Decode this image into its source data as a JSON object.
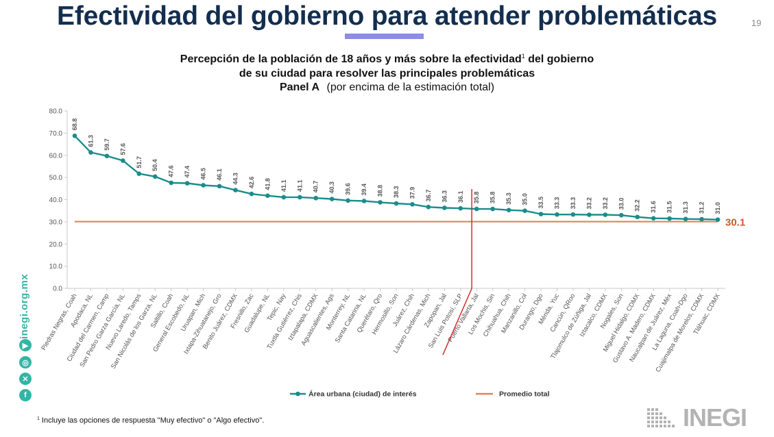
{
  "header": {
    "title": "Efectividad del gobierno para atender problemáticas",
    "page_number": "19"
  },
  "subtitle": {
    "line1_a": "Percepción de la población de 18 años y más sobre la efectividad",
    "line1_sup": "1",
    "line1_b": " del gobierno",
    "line2": "de su ciudad para resolver las principales problemáticas",
    "panel_label": "Panel A",
    "panel_note": "(por encima de la estimación total)"
  },
  "chart_data": {
    "type": "line",
    "ylim": [
      0,
      80
    ],
    "yticks": [
      "0.0",
      "10.0",
      "20.0",
      "30.0",
      "40.0",
      "50.0",
      "60.0",
      "70.0",
      "80.0"
    ],
    "categories": [
      "Piedras Negras, Coah",
      "Apodaca, NL",
      "Ciudad del Carmen, Camp",
      "San Pedro Garza García, NL",
      "Nuevo Laredo, Tamps",
      "San Nicolás de los Garza, NL",
      "Saltillo, Coah",
      "General Escobedo, NL",
      "Uruapan, Mich",
      "Ixtapa-Zihuatanejo, Gro",
      "Benito Juárez, CDMX",
      "Fresnillo, Zac",
      "Guadalupe, NL",
      "Tepic, Nay",
      "Tuxtla Gutiérrez, Chis",
      "Iztapalapa, CDMX",
      "Aguascalientes, Ags",
      "Monterrey, NL",
      "Santa Catarina, NL",
      "Querétaro, Qro",
      "Hermosillo, Son",
      "Juárez, Chih",
      "Lázaro Cárdenas, Mich",
      "Zapopan, Jal",
      "San Luis Potosí, SLP",
      "Puerto Vallarta, Jal",
      "Los Mochis, Sin",
      "Chihuahua, Chih",
      "Manzanillo, Col",
      "Durango, Dgo",
      "Mérida, Yuc",
      "Cancún, QRoo",
      "Tlajomulco de Zúñiga, Jal",
      "Iztacalco, CDMX",
      "Nogales, Son",
      "Miguel Hidalgo, CDMX",
      "Gustavo A. Madero, CDMX",
      "Naucalpan de Juárez, Méx",
      "La Laguna, Coah-Dgo",
      "Cuajimalpa de Morelos, CDMX",
      "Tláhuac, CDMX"
    ],
    "series": [
      {
        "name": "Área urbana (ciudad) de interés",
        "color": "#1a8c8c",
        "values": [
          68.8,
          61.3,
          59.7,
          57.6,
          51.7,
          50.4,
          47.6,
          47.4,
          46.5,
          46.1,
          44.3,
          42.6,
          41.8,
          41.1,
          41.1,
          40.7,
          40.3,
          39.6,
          39.4,
          38.8,
          38.3,
          37.9,
          36.7,
          36.3,
          36.1,
          35.8,
          35.8,
          35.3,
          35.0,
          33.5,
          33.3,
          33.3,
          33.2,
          33.2,
          33.0,
          32.2,
          31.6,
          31.5,
          31.3,
          31.2,
          31.0
        ],
        "value_labels": [
          "68.8",
          "61.3",
          "59.7",
          "57.6",
          "51.7",
          "50.4",
          "47.6",
          "47.4",
          "46.5",
          "46.1",
          "44.3",
          "42.6",
          "41.8",
          "41.1",
          "41.1",
          "40.7",
          "40.3",
          "39.6",
          "39.4",
          "38.8",
          "38.3",
          "37.9",
          "36.7",
          "36.3",
          "36.1",
          "35.8",
          "35.8",
          "35.3",
          "35.0",
          "33.5",
          "33.3",
          "33.3",
          "33.2",
          "33.2",
          "33.0",
          "32.2",
          "31.6",
          "31.5",
          "31.3",
          "31.2",
          "31.0"
        ]
      },
      {
        "name": "Promedio total",
        "color": "#e0825a",
        "value": 30.1,
        "value_label": "30.1"
      }
    ],
    "legend_position": "bottom",
    "grid": false,
    "colors": {
      "value_label": "#555555",
      "axis_text": "#555555",
      "total_label": "#d4582a",
      "marker_line": "#d42a2a"
    }
  },
  "footnote": {
    "sup": "1",
    "text": "Incluye las opciones de respuesta \"Muy efectivo\" o \"Algo efectivo\"."
  },
  "sidebar": {
    "site": "inegi.org.mx",
    "icons": [
      "youtube-icon",
      "instagram-icon",
      "x-icon",
      "facebook-icon"
    ]
  },
  "logo": {
    "text": "INEGI"
  }
}
